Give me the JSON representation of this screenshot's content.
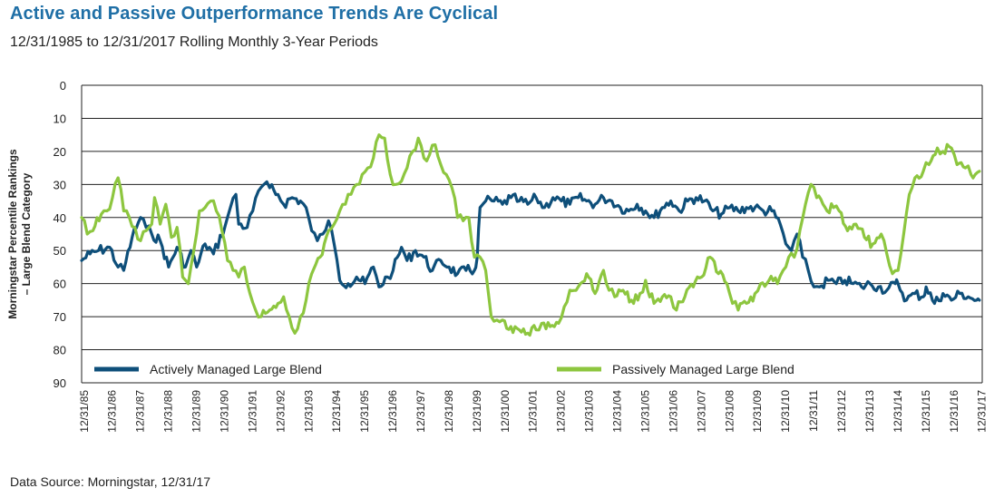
{
  "title": "Active and Passive Outperformance Trends Are Cyclical",
  "subtitle": "12/31/1985 to 12/31/2017 Rolling Monthly 3-Year Periods",
  "source": "Data Source: Morningstar, 12/31/17",
  "chart_data": {
    "type": "line",
    "ylabel_lines": [
      "Morningstar Percentile Rankings",
      "– Large Blend Category"
    ],
    "y_inverted": true,
    "ylim": [
      0,
      90
    ],
    "y_ticks": [
      0,
      10,
      20,
      30,
      40,
      50,
      60,
      70,
      80,
      90
    ],
    "xlim": [
      1985.9,
      2018.0
    ],
    "x_ticks": [
      "12/31/85",
      "12/31/86",
      "12/31/87",
      "12/31/88",
      "12/31/89",
      "12/31/90",
      "12/31/91",
      "12/31/92",
      "12/31/93",
      "12/31/94",
      "12/31/95",
      "12/31/96",
      "12/31/97",
      "12/31/98",
      "12/31/99",
      "12/31/00",
      "12/31/01",
      "12/31/02",
      "12/31/03",
      "12/31/04",
      "12/31/05",
      "12/31/06",
      "12/31/07",
      "12/31/08",
      "12/31/09",
      "12/31/10",
      "12/31/11",
      "12/31/12",
      "12/31/13",
      "12/31/14",
      "12/31/15",
      "12/31/16",
      "12/31/17"
    ],
    "grid": "horizontal",
    "legend_position": "bottom-inside",
    "series": [
      {
        "name": "Actively Managed Large Blend",
        "color": "#0e4f7a",
        "points": [
          [
            1985.9,
            53
          ],
          [
            1986.2,
            51
          ],
          [
            1986.5,
            50
          ],
          [
            1986.9,
            49
          ],
          [
            1987.2,
            55
          ],
          [
            1987.4,
            56
          ],
          [
            1987.7,
            46
          ],
          [
            1988.0,
            40
          ],
          [
            1988.2,
            43
          ],
          [
            1988.4,
            45
          ],
          [
            1988.7,
            47
          ],
          [
            1989.0,
            55
          ],
          [
            1989.3,
            49
          ],
          [
            1989.6,
            55
          ],
          [
            1989.8,
            50
          ],
          [
            1990.0,
            55
          ],
          [
            1990.3,
            48
          ],
          [
            1990.6,
            51
          ],
          [
            1991.0,
            43
          ],
          [
            1991.2,
            37
          ],
          [
            1991.4,
            33
          ],
          [
            1991.5,
            42
          ],
          [
            1991.8,
            43
          ],
          [
            1992.0,
            38
          ],
          [
            1992.2,
            32
          ],
          [
            1992.4,
            30
          ],
          [
            1992.6,
            31
          ],
          [
            1992.9,
            33
          ],
          [
            1993.1,
            36
          ],
          [
            1993.4,
            34
          ],
          [
            1993.7,
            35
          ],
          [
            1993.9,
            37
          ],
          [
            1994.1,
            44
          ],
          [
            1994.3,
            47
          ],
          [
            1994.5,
            45
          ],
          [
            1994.7,
            41
          ],
          [
            1994.9,
            48
          ],
          [
            1995.1,
            59
          ],
          [
            1995.4,
            60
          ],
          [
            1995.7,
            58
          ],
          [
            1996.0,
            60
          ],
          [
            1996.3,
            55
          ],
          [
            1996.5,
            61
          ],
          [
            1996.8,
            58
          ],
          [
            1997.0,
            56
          ],
          [
            1997.3,
            49
          ],
          [
            1997.5,
            53
          ],
          [
            1997.8,
            50
          ],
          [
            1998.1,
            52
          ],
          [
            1998.4,
            56
          ],
          [
            1998.7,
            53
          ],
          [
            1999.0,
            55
          ],
          [
            1999.3,
            57
          ],
          [
            1999.6,
            56
          ],
          [
            1999.9,
            56
          ],
          [
            2000.0,
            52
          ],
          [
            2000.1,
            37
          ],
          [
            2000.3,
            35
          ],
          [
            2000.6,
            35
          ],
          [
            2000.9,
            36
          ],
          [
            2001.2,
            34
          ],
          [
            2001.5,
            35
          ],
          [
            2001.8,
            36
          ],
          [
            2002.1,
            34
          ],
          [
            2002.4,
            37
          ],
          [
            2002.7,
            34
          ],
          [
            2003.0,
            35
          ],
          [
            2003.3,
            36
          ],
          [
            2003.6,
            34
          ],
          [
            2003.9,
            35
          ],
          [
            2004.2,
            36
          ],
          [
            2004.5,
            34
          ],
          [
            2004.8,
            35
          ],
          [
            2005.1,
            37
          ],
          [
            2005.4,
            38
          ],
          [
            2005.7,
            36
          ],
          [
            2006.0,
            38
          ],
          [
            2006.3,
            40
          ],
          [
            2006.6,
            37
          ],
          [
            2006.9,
            35
          ],
          [
            2007.2,
            38
          ],
          [
            2007.5,
            35
          ],
          [
            2007.8,
            34
          ],
          [
            2008.1,
            35
          ],
          [
            2008.4,
            38
          ],
          [
            2008.7,
            39
          ],
          [
            2009.0,
            37
          ],
          [
            2009.3,
            38
          ],
          [
            2009.6,
            37
          ],
          [
            2009.9,
            37
          ],
          [
            2010.2,
            38
          ],
          [
            2010.5,
            38
          ],
          [
            2010.8,
            42
          ],
          [
            2011.0,
            48
          ],
          [
            2011.2,
            50
          ],
          [
            2011.4,
            45
          ],
          [
            2011.6,
            52
          ],
          [
            2011.8,
            56
          ],
          [
            2012.0,
            61
          ],
          [
            2012.2,
            61
          ],
          [
            2012.5,
            59
          ],
          [
            2012.8,
            60
          ],
          [
            2013.1,
            59
          ],
          [
            2013.4,
            60
          ],
          [
            2013.7,
            61
          ],
          [
            2014.0,
            60
          ],
          [
            2014.3,
            61
          ],
          [
            2014.6,
            62
          ],
          [
            2014.9,
            60
          ],
          [
            2015.0,
            60
          ],
          [
            2015.3,
            65
          ],
          [
            2015.6,
            63
          ],
          [
            2015.9,
            64
          ],
          [
            2016.0,
            61
          ],
          [
            2016.3,
            66
          ],
          [
            2016.6,
            63
          ],
          [
            2016.9,
            65
          ],
          [
            2017.2,
            63
          ],
          [
            2017.5,
            64
          ],
          [
            2017.8,
            65
          ],
          [
            2017.9,
            65
          ]
        ]
      },
      {
        "name": "Passively Managed Large Blend",
        "color": "#8dc63f",
        "points": [
          [
            1985.9,
            40
          ],
          [
            1986.1,
            45
          ],
          [
            1986.3,
            44
          ],
          [
            1986.6,
            39
          ],
          [
            1986.8,
            38
          ],
          [
            1987.0,
            34
          ],
          [
            1987.2,
            28
          ],
          [
            1987.4,
            38
          ],
          [
            1987.6,
            40
          ],
          [
            1987.8,
            43
          ],
          [
            1988.0,
            47
          ],
          [
            1988.2,
            44
          ],
          [
            1988.4,
            42
          ],
          [
            1988.5,
            34
          ],
          [
            1988.7,
            42
          ],
          [
            1988.9,
            36
          ],
          [
            1989.1,
            46
          ],
          [
            1989.3,
            43
          ],
          [
            1989.5,
            58
          ],
          [
            1989.7,
            60
          ],
          [
            1989.9,
            50
          ],
          [
            1990.1,
            38
          ],
          [
            1990.3,
            37
          ],
          [
            1990.5,
            35
          ],
          [
            1990.7,
            38
          ],
          [
            1990.9,
            44
          ],
          [
            1991.1,
            53
          ],
          [
            1991.3,
            56
          ],
          [
            1991.5,
            58
          ],
          [
            1991.7,
            55
          ],
          [
            1991.9,
            63
          ],
          [
            1992.1,
            68
          ],
          [
            1992.3,
            70
          ],
          [
            1992.6,
            68
          ],
          [
            1992.9,
            66
          ],
          [
            1993.1,
            64
          ],
          [
            1993.3,
            70
          ],
          [
            1993.5,
            75
          ],
          [
            1993.7,
            70
          ],
          [
            1993.9,
            65
          ],
          [
            1994.1,
            57
          ],
          [
            1994.4,
            52
          ],
          [
            1994.7,
            44
          ],
          [
            1994.9,
            42
          ],
          [
            1995.1,
            38
          ],
          [
            1995.3,
            36
          ],
          [
            1995.5,
            33
          ],
          [
            1995.7,
            30
          ],
          [
            1995.9,
            27
          ],
          [
            1996.1,
            25
          ],
          [
            1996.3,
            22
          ],
          [
            1996.5,
            15
          ],
          [
            1996.7,
            16
          ],
          [
            1996.9,
            27
          ],
          [
            1997.1,
            30
          ],
          [
            1997.3,
            29
          ],
          [
            1997.5,
            25
          ],
          [
            1997.7,
            20
          ],
          [
            1997.9,
            16
          ],
          [
            1998.1,
            22
          ],
          [
            1998.3,
            21
          ],
          [
            1998.5,
            18
          ],
          [
            1998.7,
            24
          ],
          [
            1998.9,
            27
          ],
          [
            1999.1,
            31
          ],
          [
            1999.3,
            40
          ],
          [
            1999.5,
            41
          ],
          [
            1999.7,
            40
          ],
          [
            1999.9,
            52
          ],
          [
            2000.1,
            52
          ],
          [
            2000.3,
            56
          ],
          [
            2000.5,
            70
          ],
          [
            2000.7,
            71
          ],
          [
            2000.9,
            71
          ],
          [
            2001.2,
            73
          ],
          [
            2001.5,
            74
          ],
          [
            2001.8,
            75
          ],
          [
            2002.1,
            74
          ],
          [
            2002.3,
            72
          ],
          [
            2002.6,
            73
          ],
          [
            2002.9,
            72
          ],
          [
            2003.1,
            67
          ],
          [
            2003.3,
            62
          ],
          [
            2003.6,
            61
          ],
          [
            2003.9,
            57
          ],
          [
            2004.2,
            63
          ],
          [
            2004.5,
            56
          ],
          [
            2004.7,
            62
          ],
          [
            2004.9,
            64
          ],
          [
            2005.2,
            62
          ],
          [
            2005.5,
            65
          ],
          [
            2005.8,
            63
          ],
          [
            2006.0,
            59
          ],
          [
            2006.3,
            66
          ],
          [
            2006.6,
            64
          ],
          [
            2006.9,
            64
          ],
          [
            2007.1,
            68
          ],
          [
            2007.4,
            64
          ],
          [
            2007.7,
            61
          ],
          [
            2008.0,
            58
          ],
          [
            2008.3,
            52
          ],
          [
            2008.6,
            57
          ],
          [
            2008.9,
            60
          ],
          [
            2009.1,
            66
          ],
          [
            2009.3,
            68
          ],
          [
            2009.6,
            66
          ],
          [
            2009.9,
            63
          ],
          [
            2010.1,
            60
          ],
          [
            2010.4,
            59
          ],
          [
            2010.7,
            60
          ],
          [
            2010.9,
            56
          ],
          [
            2011.1,
            52
          ],
          [
            2011.3,
            52
          ],
          [
            2011.5,
            44
          ],
          [
            2011.7,
            36
          ],
          [
            2011.9,
            30
          ],
          [
            2012.1,
            34
          ],
          [
            2012.4,
            37
          ],
          [
            2012.7,
            37
          ],
          [
            2012.9,
            38
          ],
          [
            2013.2,
            44
          ],
          [
            2013.5,
            42
          ],
          [
            2013.8,
            46
          ],
          [
            2014.1,
            48
          ],
          [
            2014.4,
            45
          ],
          [
            2014.6,
            51
          ],
          [
            2014.8,
            57
          ],
          [
            2015.0,
            56
          ],
          [
            2015.2,
            45
          ],
          [
            2015.4,
            33
          ],
          [
            2015.6,
            28
          ],
          [
            2015.9,
            26
          ],
          [
            2016.1,
            24
          ],
          [
            2016.4,
            19
          ],
          [
            2016.6,
            20
          ],
          [
            2016.9,
            19
          ],
          [
            2017.1,
            24
          ],
          [
            2017.4,
            25
          ],
          [
            2017.6,
            27
          ],
          [
            2017.9,
            26
          ]
        ]
      }
    ]
  }
}
